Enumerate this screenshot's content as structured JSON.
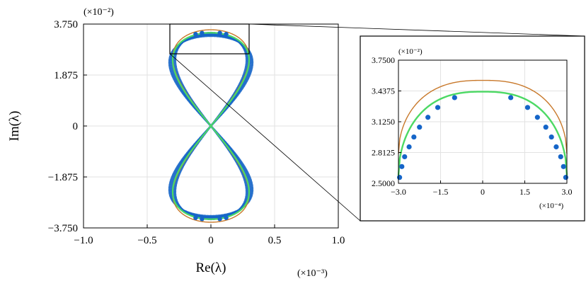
{
  "chart_data": [
    {
      "type": "scatter",
      "panel": "main",
      "xlabel": "Re(λ)",
      "ylabel": "Im(λ)",
      "x_multiplier": "(×10⁻³)",
      "y_multiplier": "(×10⁻²)",
      "xlim": [
        -1.0,
        1.0
      ],
      "ylim": [
        -3.75,
        3.75
      ],
      "xticks": [
        "−1.0",
        "−0.5",
        "0",
        "0.5",
        "1.0"
      ],
      "yticks": [
        "3.750",
        "1.875",
        "0",
        "−1.875",
        "−3.750"
      ],
      "grid": true,
      "inset_region": {
        "x": [
          -0.3,
          0.3
        ],
        "y": [
          2.5,
          3.75
        ]
      },
      "curve": {
        "amplitude_x": 0.3,
        "amplitude_y_green": 3.43,
        "amplitude_y_orange": 3.54
      },
      "colors": {
        "dots": "#1565c8",
        "green": "#4cd964",
        "orange": "#c8782a",
        "grid": "#e2e2e2"
      }
    },
    {
      "type": "scatter",
      "panel": "inset",
      "x_multiplier": "(×10⁻⁴)",
      "y_multiplier": "(×10⁻²)",
      "xlim": [
        -3.0,
        3.0
      ],
      "ylim": [
        2.5,
        3.75
      ],
      "xticks": [
        "−3.0",
        "−1.5",
        "0",
        "1.5",
        "3.0"
      ],
      "yticks": [
        "3.7500",
        "3.4375",
        "3.1250",
        "2.8125",
        "2.5000"
      ],
      "grid": true,
      "points": [
        {
          "x": -1.0,
          "y": 3.37
        },
        {
          "x": -1.6,
          "y": 3.27
        },
        {
          "x": -1.95,
          "y": 3.17
        },
        {
          "x": -2.25,
          "y": 3.07
        },
        {
          "x": -2.45,
          "y": 2.97
        },
        {
          "x": -2.62,
          "y": 2.87
        },
        {
          "x": -2.78,
          "y": 2.77
        },
        {
          "x": -2.88,
          "y": 2.67
        },
        {
          "x": -2.96,
          "y": 2.56
        },
        {
          "x": 1.0,
          "y": 3.37
        },
        {
          "x": 1.6,
          "y": 3.27
        },
        {
          "x": 1.95,
          "y": 3.17
        },
        {
          "x": 2.25,
          "y": 3.07
        },
        {
          "x": 2.45,
          "y": 2.97
        },
        {
          "x": 2.62,
          "y": 2.87
        },
        {
          "x": 2.78,
          "y": 2.77
        },
        {
          "x": 2.88,
          "y": 2.67
        },
        {
          "x": 2.96,
          "y": 2.56
        }
      ]
    }
  ]
}
